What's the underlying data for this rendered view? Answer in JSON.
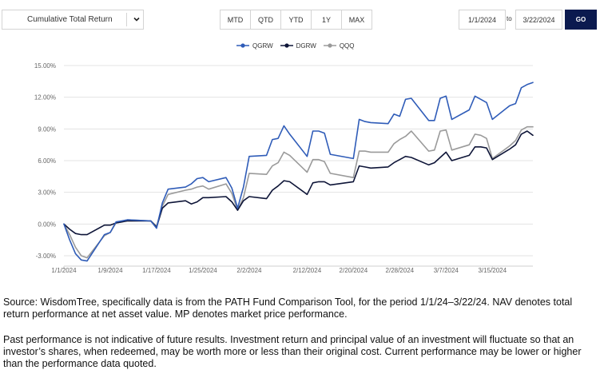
{
  "controls": {
    "metric": "Cumulative Total Return",
    "ranges": [
      "MTD",
      "QTD",
      "YTD",
      "1Y",
      "MAX"
    ],
    "date_from": "1/1/2024",
    "to_label": "to",
    "date_to": "3/22/2024",
    "go_label": "GO"
  },
  "chart_data": {
    "type": "line",
    "title": "",
    "xlabel": "",
    "ylabel": "",
    "legend_position": "top-center",
    "grid": true,
    "x_ticks": [
      "1/1/2024",
      "1/9/2024",
      "1/17/2024",
      "1/25/2024",
      "2/2/2024",
      "2/12/2024",
      "2/20/2024",
      "2/28/2024",
      "3/7/2024",
      "3/15/2024"
    ],
    "y_ticks": [
      "-3.00%",
      "0.00%",
      "3.00%",
      "6.00%",
      "9.00%",
      "12.00%",
      "15.00%"
    ],
    "ylim": [
      -3,
      15
    ],
    "x": [
      "1/1/2024",
      "1/2/2024",
      "1/3/2024",
      "1/4/2024",
      "1/5/2024",
      "1/8/2024",
      "1/9/2024",
      "1/10/2024",
      "1/11/2024",
      "1/12/2024",
      "1/16/2024",
      "1/17/2024",
      "1/18/2024",
      "1/19/2024",
      "1/22/2024",
      "1/23/2024",
      "1/24/2024",
      "1/25/2024",
      "1/26/2024",
      "1/29/2024",
      "1/30/2024",
      "1/31/2024",
      "2/1/2024",
      "2/2/2024",
      "2/5/2024",
      "2/6/2024",
      "2/7/2024",
      "2/8/2024",
      "2/9/2024",
      "2/12/2024",
      "2/13/2024",
      "2/14/2024",
      "2/15/2024",
      "2/16/2024",
      "2/20/2024",
      "2/21/2024",
      "2/22/2024",
      "2/23/2024",
      "2/26/2024",
      "2/27/2024",
      "2/28/2024",
      "2/29/2024",
      "3/1/2024",
      "3/4/2024",
      "3/5/2024",
      "3/6/2024",
      "3/7/2024",
      "3/8/2024",
      "3/11/2024",
      "3/12/2024",
      "3/13/2024",
      "3/14/2024",
      "3/15/2024",
      "3/18/2024",
      "3/19/2024",
      "3/20/2024",
      "3/21/2024",
      "3/22/2024"
    ],
    "series": [
      {
        "name": "QGRW",
        "color": "#2f5cb8",
        "values": [
          0.0,
          -1.5,
          -2.8,
          -3.4,
          -3.5,
          -1.0,
          -0.8,
          0.2,
          0.3,
          0.4,
          0.3,
          -0.4,
          2.0,
          3.3,
          3.5,
          3.8,
          4.3,
          4.4,
          4.0,
          4.4,
          3.4,
          1.5,
          3.5,
          6.4,
          6.5,
          8.0,
          8.1,
          9.3,
          8.5,
          6.4,
          8.8,
          8.8,
          8.6,
          6.6,
          6.2,
          9.9,
          9.7,
          9.6,
          9.5,
          10.4,
          10.2,
          11.8,
          11.9,
          9.8,
          9.8,
          11.9,
          12.1,
          9.9,
          10.8,
          12.1,
          11.8,
          11.5,
          9.9,
          11.2,
          11.4,
          12.9,
          13.2,
          13.4
        ]
      },
      {
        "name": "DGRW",
        "color": "#0e1538",
        "values": [
          0.0,
          -0.5,
          -0.9,
          -1.0,
          -1.0,
          -0.1,
          -0.1,
          0.1,
          0.2,
          0.3,
          0.3,
          -0.3,
          1.5,
          2.0,
          2.2,
          1.9,
          2.1,
          2.5,
          2.5,
          2.6,
          2.1,
          1.3,
          2.2,
          2.6,
          2.4,
          3.2,
          3.6,
          4.1,
          4.0,
          2.8,
          3.9,
          4.0,
          4.0,
          3.7,
          4.0,
          5.5,
          5.4,
          5.3,
          5.4,
          5.8,
          6.1,
          6.4,
          6.3,
          5.6,
          5.8,
          6.3,
          6.8,
          6.0,
          6.5,
          7.3,
          7.3,
          7.2,
          6.1,
          7.1,
          7.5,
          8.5,
          8.8,
          8.4
        ]
      },
      {
        "name": "QQQ",
        "color": "#9a9a9a",
        "values": [
          0.0,
          -1.0,
          -2.2,
          -3.0,
          -3.2,
          -1.1,
          -0.8,
          0.1,
          0.2,
          0.4,
          0.3,
          -0.2,
          1.7,
          2.8,
          3.2,
          3.3,
          3.5,
          3.6,
          3.3,
          3.8,
          2.9,
          1.3,
          2.5,
          4.8,
          4.7,
          5.5,
          5.8,
          6.8,
          6.5,
          4.9,
          6.1,
          6.1,
          5.9,
          4.8,
          4.4,
          6.9,
          6.9,
          6.8,
          6.8,
          7.6,
          8.0,
          8.3,
          8.8,
          6.9,
          7.0,
          8.8,
          8.9,
          7.0,
          7.5,
          8.5,
          8.4,
          8.1,
          6.2,
          7.4,
          7.9,
          8.9,
          9.2,
          9.2
        ]
      }
    ]
  },
  "notes": {
    "source": "Source: WisdomTree, specifically data is from the PATH Fund Comparison Tool, for the period 1/1/24–3/22/24. NAV denotes total return performance at net asset value. MP denotes market price performance.",
    "disclaimer": "Past performance is not indicative of future results. Investment return and principal value of an investment will fluctuate so that an investor’s shares, when redeemed, may be worth more or less than their original cost. Current performance may be lower or higher than the performance data quoted."
  }
}
